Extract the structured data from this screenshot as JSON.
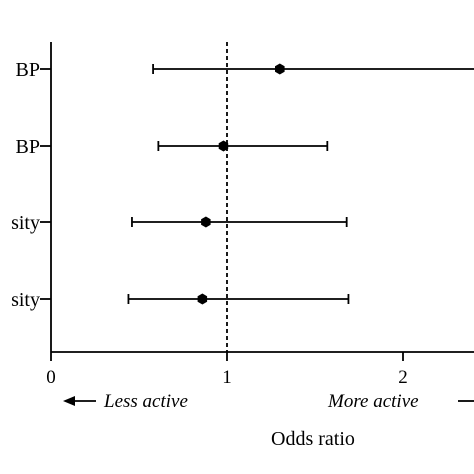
{
  "chart_data": {
    "type": "forest",
    "xlabel": "Odds ratio",
    "xlim": [
      0,
      2.5
    ],
    "xticks": [
      "0",
      "1",
      "2"
    ],
    "reference_line": 1,
    "direction_labels": {
      "left": "Less active",
      "right": "More active"
    },
    "rows": [
      {
        "label": "BP",
        "estimate": 1.3,
        "lower": 0.58,
        "upper": 2.5
      },
      {
        "label": "BP",
        "estimate": 0.98,
        "lower": 0.61,
        "upper": 1.57
      },
      {
        "label": "sity",
        "estimate": 0.88,
        "lower": 0.46,
        "upper": 1.68
      },
      {
        "label": "sity",
        "estimate": 0.86,
        "lower": 0.44,
        "upper": 1.69
      }
    ]
  }
}
